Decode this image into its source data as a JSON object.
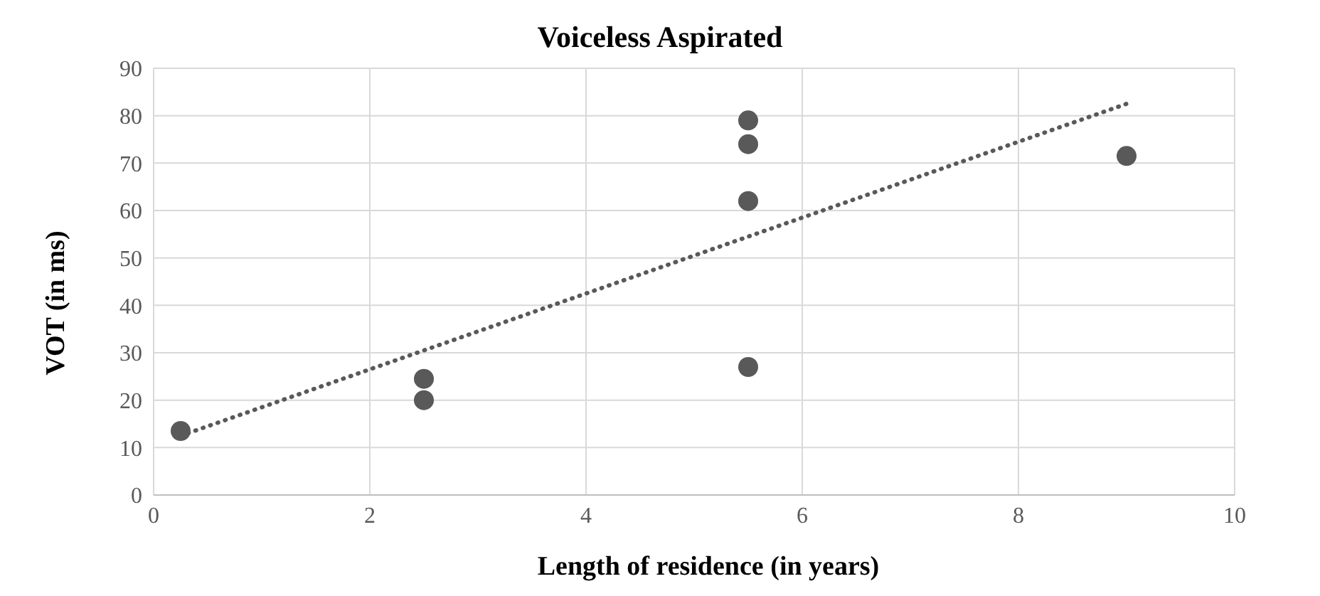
{
  "chart_data": {
    "type": "scatter",
    "title": "Voiceless Aspirated",
    "xlabel": "Length of residence (in years)",
    "ylabel": "VOT (in ms)",
    "x": [
      0.25,
      2.5,
      2.5,
      5.5,
      5.5,
      5.5,
      5.5,
      9
    ],
    "series": [
      {
        "color": "#595959",
        "values": [
          13.5,
          24.5,
          20,
          79,
          74,
          62,
          27,
          71.5
        ],
        "marker": "circle"
      },
      {
        "type": "line",
        "color": "#595959",
        "x": [
          0.25,
          9
        ],
        "values": [
          12.5,
          82.5
        ],
        "line_style": "dotted",
        "marker": "none"
      }
    ],
    "xlim": [
      0,
      10
    ],
    "xticks": [
      0,
      2,
      4,
      6,
      8,
      10
    ],
    "ylim": [
      0,
      90
    ],
    "yticks": [
      0,
      10,
      20,
      30,
      40,
      50,
      60,
      70,
      80,
      90
    ],
    "grid": true,
    "legend": false
  }
}
